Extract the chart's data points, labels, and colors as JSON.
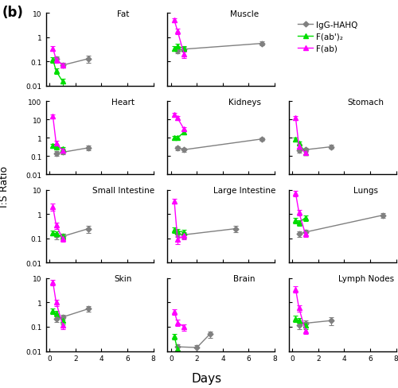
{
  "subplots": [
    {
      "title": "Fat",
      "row": 0,
      "col": 0,
      "ylim": [
        0.01,
        10
      ],
      "xlim": [
        -0.3,
        8
      ],
      "yticks": [
        0.01,
        0.1,
        1,
        10
      ],
      "ytick_labels": [
        "0.01",
        "0.1",
        "1",
        "10"
      ],
      "xticks": [
        0,
        2,
        4,
        6,
        8
      ],
      "series": [
        {
          "label": "IgG-HAHQ",
          "color": "#808080",
          "x": [
            0.5,
            1,
            3
          ],
          "y": [
            0.13,
            0.07,
            0.13
          ],
          "yerr": [
            0.03,
            0.015,
            0.04
          ]
        },
        {
          "label": "F(ab')2",
          "color": "#00dd00",
          "x": [
            0.25,
            0.5,
            1
          ],
          "y": [
            0.12,
            0.04,
            0.015
          ],
          "yerr": [
            0.03,
            0.01,
            0.005
          ]
        },
        {
          "label": "F(ab)",
          "color": "#ff00ff",
          "x": [
            0.25,
            0.5,
            1
          ],
          "y": [
            0.35,
            0.12,
            0.07
          ],
          "yerr": [
            0.08,
            0.03,
            0.015
          ]
        }
      ]
    },
    {
      "title": "Muscle",
      "row": 0,
      "col": 1,
      "ylim": [
        0.01,
        10
      ],
      "xlim": [
        -0.3,
        8
      ],
      "yticks": [
        0.01,
        0.1,
        1,
        10
      ],
      "ytick_labels": [
        "0.01",
        "0.1",
        "1",
        "10"
      ],
      "xticks": [
        0,
        2,
        4,
        6,
        8
      ],
      "series": [
        {
          "label": "IgG-HAHQ",
          "color": "#808080",
          "x": [
            0.5,
            1,
            7
          ],
          "y": [
            0.28,
            0.32,
            0.55
          ],
          "yerr": [
            0.06,
            0.07,
            0.1
          ]
        },
        {
          "label": "F(ab')2",
          "color": "#00dd00",
          "x": [
            0.25,
            0.5,
            1
          ],
          "y": [
            0.35,
            0.42,
            0.35
          ],
          "yerr": [
            0.08,
            0.1,
            0.07
          ]
        },
        {
          "label": "F(ab)",
          "color": "#ff00ff",
          "x": [
            0.25,
            0.5,
            1
          ],
          "y": [
            5.0,
            1.8,
            0.2
          ],
          "yerr": [
            1.0,
            0.5,
            0.06
          ]
        }
      ]
    },
    {
      "title": "Heart",
      "row": 1,
      "col": 0,
      "ylim": [
        0.01,
        100
      ],
      "xlim": [
        -0.3,
        8
      ],
      "yticks": [
        0.01,
        0.1,
        1,
        10,
        100
      ],
      "ytick_labels": [
        "0.01",
        "0.1",
        "1",
        "10",
        "100"
      ],
      "xticks": [
        0,
        2,
        4,
        6,
        8
      ],
      "series": [
        {
          "label": "IgG-HAHQ",
          "color": "#808080",
          "x": [
            0.5,
            1,
            3
          ],
          "y": [
            0.14,
            0.16,
            0.28
          ],
          "yerr": [
            0.04,
            0.04,
            0.08
          ]
        },
        {
          "label": "F(ab')2",
          "color": "#00dd00",
          "x": [
            0.25,
            0.5,
            1
          ],
          "y": [
            0.38,
            0.32,
            0.25
          ],
          "yerr": [
            0.1,
            0.08,
            0.06
          ]
        },
        {
          "label": "F(ab)",
          "color": "#ff00ff",
          "x": [
            0.25,
            0.5,
            1
          ],
          "y": [
            15.0,
            0.5,
            0.2
          ],
          "yerr": [
            4.0,
            0.15,
            0.06
          ]
        }
      ]
    },
    {
      "title": "Kidneys",
      "row": 1,
      "col": 1,
      "ylim": [
        0.01,
        100
      ],
      "xlim": [
        -0.3,
        8
      ],
      "yticks": [
        0.01,
        0.1,
        1,
        10,
        100
      ],
      "ytick_labels": [
        "0.01",
        "0.1",
        "1",
        "10",
        "100"
      ],
      "xticks": [
        0,
        2,
        4,
        6,
        8
      ],
      "series": [
        {
          "label": "IgG-HAHQ",
          "color": "#808080",
          "x": [
            0.5,
            1,
            7
          ],
          "y": [
            0.28,
            0.22,
            0.85
          ],
          "yerr": [
            0.07,
            0.06,
            0.18
          ]
        },
        {
          "label": "F(ab')2",
          "color": "#00dd00",
          "x": [
            0.25,
            0.5,
            1
          ],
          "y": [
            1.0,
            1.0,
            2.0
          ],
          "yerr": [
            0.25,
            0.2,
            0.4
          ]
        },
        {
          "label": "F(ab)",
          "color": "#ff00ff",
          "x": [
            0.25,
            0.5,
            1
          ],
          "y": [
            18.0,
            12.0,
            3.0
          ],
          "yerr": [
            4.0,
            3.0,
            0.8
          ]
        }
      ]
    },
    {
      "title": "Stomach",
      "row": 1,
      "col": 2,
      "ylim": [
        0.01,
        100
      ],
      "xlim": [
        -0.3,
        8
      ],
      "yticks": [
        0.01,
        0.1,
        1,
        10,
        100
      ],
      "ytick_labels": [
        "0.01",
        "0.1",
        "1",
        "10",
        "100"
      ],
      "xticks": [
        0,
        2,
        4,
        6,
        8
      ],
      "series": [
        {
          "label": "IgG-HAHQ",
          "color": "#808080",
          "x": [
            0.5,
            1,
            3
          ],
          "y": [
            0.2,
            0.22,
            0.32
          ],
          "yerr": [
            0.05,
            0.05,
            0.08
          ]
        },
        {
          "label": "F(ab')2",
          "color": "#00dd00",
          "x": [
            0.25,
            0.5,
            1
          ],
          "y": [
            0.8,
            0.5,
            0.15
          ],
          "yerr": [
            0.2,
            0.1,
            0.04
          ]
        },
        {
          "label": "F(ab)",
          "color": "#ff00ff",
          "x": [
            0.25,
            0.5,
            1
          ],
          "y": [
            12.0,
            0.35,
            0.15
          ],
          "yerr": [
            3.0,
            0.1,
            0.04
          ]
        }
      ]
    },
    {
      "title": "Small Intestine",
      "row": 2,
      "col": 0,
      "ylim": [
        0.01,
        10
      ],
      "xlim": [
        -0.3,
        8
      ],
      "yticks": [
        0.01,
        0.1,
        1,
        10
      ],
      "ytick_labels": [
        "0.01",
        "0.1",
        "1",
        "10"
      ],
      "xticks": [
        0,
        2,
        4,
        6,
        8
      ],
      "series": [
        {
          "label": "IgG-HAHQ",
          "color": "#808080",
          "x": [
            0.5,
            1,
            3
          ],
          "y": [
            0.13,
            0.12,
            0.25
          ],
          "yerr": [
            0.04,
            0.03,
            0.08
          ]
        },
        {
          "label": "F(ab')2",
          "color": "#00dd00",
          "x": [
            0.25,
            0.5,
            1
          ],
          "y": [
            0.17,
            0.15,
            0.12
          ],
          "yerr": [
            0.04,
            0.04,
            0.03
          ]
        },
        {
          "label": "F(ab)",
          "color": "#ff00ff",
          "x": [
            0.25,
            0.5,
            1
          ],
          "y": [
            2.0,
            0.35,
            0.1
          ],
          "yerr": [
            0.6,
            0.1,
            0.03
          ]
        }
      ]
    },
    {
      "title": "Large Intestine",
      "row": 2,
      "col": 1,
      "ylim": [
        0.01,
        10
      ],
      "xlim": [
        -0.3,
        8
      ],
      "yticks": [
        0.01,
        0.1,
        1,
        10
      ],
      "ytick_labels": [
        "0.01",
        "0.1",
        "1",
        "10"
      ],
      "xticks": [
        0,
        2,
        4,
        6,
        8
      ],
      "series": [
        {
          "label": "IgG-HAHQ",
          "color": "#808080",
          "x": [
            0.5,
            1,
            5
          ],
          "y": [
            0.15,
            0.14,
            0.25
          ],
          "yerr": [
            0.04,
            0.04,
            0.07
          ]
        },
        {
          "label": "F(ab')2",
          "color": "#00dd00",
          "x": [
            0.25,
            0.5,
            1
          ],
          "y": [
            0.22,
            0.2,
            0.18
          ],
          "yerr": [
            0.06,
            0.05,
            0.05
          ]
        },
        {
          "label": "F(ab)",
          "color": "#ff00ff",
          "x": [
            0.25,
            0.5,
            1
          ],
          "y": [
            3.5,
            0.09,
            0.13
          ],
          "yerr": [
            0.9,
            0.03,
            0.04
          ]
        }
      ]
    },
    {
      "title": "Lungs",
      "row": 2,
      "col": 2,
      "ylim": [
        0.01,
        10
      ],
      "xlim": [
        -0.3,
        8
      ],
      "yticks": [
        0.01,
        0.1,
        1,
        10
      ],
      "ytick_labels": [
        "0.01",
        "0.1",
        "1",
        "10"
      ],
      "xticks": [
        0,
        2,
        4,
        6,
        8
      ],
      "series": [
        {
          "label": "IgG-HAHQ",
          "color": "#808080",
          "x": [
            0.5,
            1,
            7
          ],
          "y": [
            0.15,
            0.18,
            0.9
          ],
          "yerr": [
            0.04,
            0.05,
            0.2
          ]
        },
        {
          "label": "F(ab')2",
          "color": "#00dd00",
          "x": [
            0.25,
            0.5,
            1
          ],
          "y": [
            0.55,
            0.45,
            0.7
          ],
          "yerr": [
            0.15,
            0.12,
            0.18
          ]
        },
        {
          "label": "F(ab)",
          "color": "#ff00ff",
          "x": [
            0.25,
            0.5,
            1
          ],
          "y": [
            7.0,
            1.2,
            0.15
          ],
          "yerr": [
            1.8,
            0.3,
            0.04
          ]
        }
      ]
    },
    {
      "title": "Skin",
      "row": 3,
      "col": 0,
      "ylim": [
        0.01,
        10
      ],
      "xlim": [
        -0.3,
        8
      ],
      "yticks": [
        0.01,
        0.1,
        1,
        10
      ],
      "ytick_labels": [
        "0.01",
        "0.1",
        "1",
        "10"
      ],
      "xticks": [
        0,
        2,
        4,
        6,
        8
      ],
      "series": [
        {
          "label": "IgG-HAHQ",
          "color": "#808080",
          "x": [
            0.5,
            1,
            3
          ],
          "y": [
            0.22,
            0.25,
            0.55
          ],
          "yerr": [
            0.06,
            0.06,
            0.14
          ]
        },
        {
          "label": "F(ab')2",
          "color": "#00dd00",
          "x": [
            0.25,
            0.5,
            1
          ],
          "y": [
            0.45,
            0.35,
            0.18
          ],
          "yerr": [
            0.12,
            0.09,
            0.05
          ]
        },
        {
          "label": "F(ab)",
          "color": "#ff00ff",
          "x": [
            0.25,
            0.5,
            1
          ],
          "y": [
            7.0,
            1.0,
            0.12
          ],
          "yerr": [
            1.8,
            0.3,
            0.04
          ]
        }
      ]
    },
    {
      "title": "Brain",
      "row": 3,
      "col": 1,
      "ylim": [
        0.01,
        10
      ],
      "xlim": [
        -0.3,
        8
      ],
      "yticks": [
        0.01,
        0.1,
        1,
        10
      ],
      "ytick_labels": [
        "0.01",
        "0.1",
        "1",
        "10"
      ],
      "xticks": [
        0,
        2,
        4,
        6,
        8
      ],
      "series": [
        {
          "label": "IgG-HAHQ",
          "color": "#808080",
          "x": [
            0.5,
            2,
            3
          ],
          "y": [
            0.015,
            0.014,
            0.05
          ],
          "yerr": [
            0.004,
            0.004,
            0.015
          ]
        },
        {
          "label": "F(ab')2",
          "color": "#00dd00",
          "x": [
            0.25,
            0.5
          ],
          "y": [
            0.04,
            0.012
          ],
          "yerr": [
            0.01,
            0.003
          ]
        },
        {
          "label": "F(ab)",
          "color": "#ff00ff",
          "x": [
            0.25,
            0.5,
            1
          ],
          "y": [
            0.42,
            0.15,
            0.1
          ],
          "yerr": [
            0.12,
            0.04,
            0.03
          ]
        }
      ]
    },
    {
      "title": "Lymph Nodes",
      "row": 3,
      "col": 2,
      "ylim": [
        0.01,
        10
      ],
      "xlim": [
        -0.3,
        8
      ],
      "yticks": [
        0.01,
        0.1,
        1,
        10
      ],
      "ytick_labels": [
        "0.01",
        "0.1",
        "1",
        "10"
      ],
      "xticks": [
        0,
        2,
        4,
        6,
        8
      ],
      "series": [
        {
          "label": "IgG-HAHQ",
          "color": "#808080",
          "x": [
            0.5,
            1,
            3
          ],
          "y": [
            0.12,
            0.14,
            0.18
          ],
          "yerr": [
            0.04,
            0.04,
            0.06
          ]
        },
        {
          "label": "F(ab')2",
          "color": "#00dd00",
          "x": [
            0.25,
            0.5,
            1
          ],
          "y": [
            0.22,
            0.18,
            0.12
          ],
          "yerr": [
            0.06,
            0.05,
            0.04
          ]
        },
        {
          "label": "F(ab)",
          "color": "#ff00ff",
          "x": [
            0.25,
            0.5,
            1
          ],
          "y": [
            3.5,
            0.6,
            0.07
          ],
          "yerr": [
            1.0,
            0.18,
            0.02
          ]
        }
      ]
    }
  ],
  "legend": {
    "labels": [
      "IgG-HAHQ",
      "F(ab')₂",
      "F(ab)"
    ],
    "colors": [
      "#808080",
      "#00dd00",
      "#ff00ff"
    ],
    "markers": [
      "D",
      "^",
      "^"
    ]
  },
  "ylabel": "I:S Ratio",
  "xlabel": "Days",
  "panel_label": "(b)"
}
